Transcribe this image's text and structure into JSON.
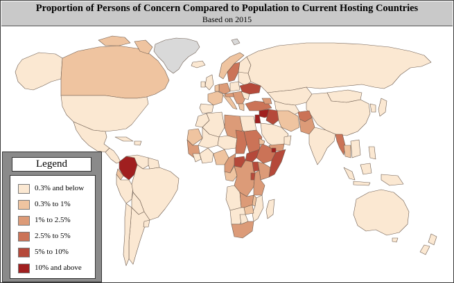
{
  "title": "Proportion of Persons of Concern Compared to Population to Current Hosting Countries",
  "subtitle": "Based on 2015",
  "colors": {
    "ocean": "#ffffff",
    "border": "#6b5a4e",
    "no_data": "#d9d9d9",
    "c1": "#fbe8d2",
    "c2": "#efc4a0",
    "c3": "#dc9b78",
    "c4": "#cb7357",
    "c5": "#b5493a",
    "c6": "#a01f1f"
  },
  "legend": {
    "title": "Legend",
    "items": [
      {
        "label": "0.3% and below",
        "color": "#fbe8d2"
      },
      {
        "label": "0.3% to 1%",
        "color": "#efc4a0"
      },
      {
        "label": "1% to 2.5%",
        "color": "#dc9b78"
      },
      {
        "label": "2.5% to 5%",
        "color": "#cb7357"
      },
      {
        "label": "5% to 10%",
        "color": "#b5493a"
      },
      {
        "label": "10% and above",
        "color": "#a01f1f"
      }
    ]
  }
}
